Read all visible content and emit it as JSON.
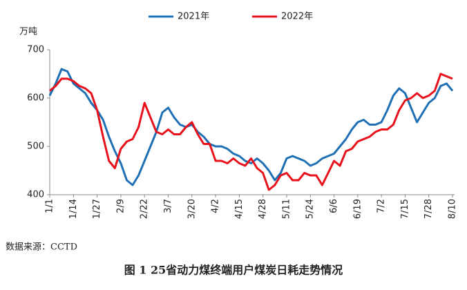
{
  "chart_data": {
    "type": "line",
    "y_unit": "万吨",
    "source": "数据来源：CCTD",
    "caption": "图 1 25省动力煤终端用户煤炭日耗走势情况",
    "categories": [
      "1/1",
      null,
      null,
      null,
      "1/14",
      null,
      null,
      null,
      "1/27",
      null,
      null,
      null,
      "2/9",
      null,
      null,
      null,
      "2/22",
      null,
      null,
      null,
      "3/7",
      null,
      null,
      null,
      "3/20",
      null,
      null,
      null,
      "4/2",
      null,
      null,
      null,
      "4/15",
      null,
      null,
      null,
      "4/28",
      null,
      null,
      null,
      "5/11",
      null,
      null,
      null,
      "5/24",
      null,
      null,
      null,
      "6/6",
      null,
      null,
      null,
      "6/19",
      null,
      null,
      null,
      "7/2",
      null,
      null,
      null,
      "7/15",
      null,
      null,
      null,
      "7/28",
      null,
      null,
      null,
      "8/10"
    ],
    "series": [
      {
        "name": "2021年",
        "color": "#1f6fb5",
        "values": [
          605,
          630,
          660,
          655,
          630,
          620,
          610,
          590,
          575,
          555,
          520,
          490,
          465,
          430,
          420,
          440,
          470,
          500,
          530,
          570,
          580,
          560,
          545,
          540,
          545,
          530,
          520,
          505,
          500,
          500,
          495,
          485,
          480,
          470,
          465,
          475,
          465,
          450,
          430,
          445,
          475,
          480,
          475,
          470,
          460,
          465,
          475,
          480,
          485,
          500,
          515,
          535,
          550,
          555,
          545,
          545,
          550,
          575,
          605,
          620,
          610,
          580,
          550,
          570,
          590,
          600,
          625,
          630,
          615
        ]
      },
      {
        "name": "2022年",
        "color": "#e8101a",
        "values": [
          615,
          625,
          640,
          640,
          635,
          625,
          620,
          610,
          575,
          520,
          470,
          455,
          495,
          510,
          515,
          540,
          590,
          560,
          530,
          525,
          535,
          525,
          525,
          540,
          550,
          525,
          505,
          505,
          470,
          470,
          465,
          475,
          465,
          460,
          475,
          455,
          445,
          410,
          420,
          440,
          445,
          430,
          430,
          445,
          440,
          440,
          420,
          445,
          470,
          460,
          490,
          495,
          510,
          515,
          520,
          530,
          535,
          535,
          545,
          575,
          595,
          600,
          610,
          600,
          605,
          615,
          650,
          645,
          640
        ]
      }
    ],
    "ylim": [
      400,
      700
    ],
    "yticks": [
      400,
      500,
      600,
      700
    ],
    "grid": false
  }
}
